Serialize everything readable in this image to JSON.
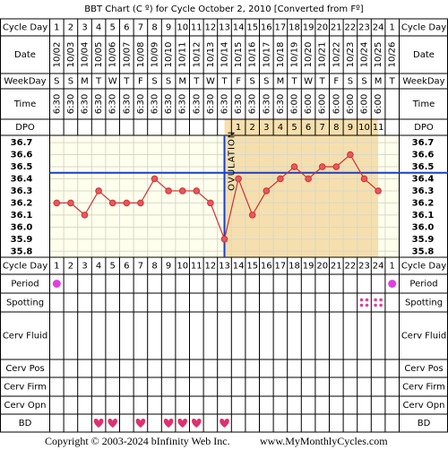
{
  "title": "BBT Chart (C º) for Cycle October 2, 2010  [Converted from Fº]",
  "labels": {
    "cycle_day": "Cycle Day",
    "date": "Date",
    "weekday": "WeekDay",
    "time": "Time",
    "dpo": "DPO",
    "period": "Period",
    "spotting": "Spotting",
    "cerv_fluid": "Cerv Fluid",
    "cerv_pos": "Cerv Pos",
    "cerv_firm": "Cerv Firm",
    "cerv_opn": "Cerv Opn",
    "bd": "BD"
  },
  "columns": {
    "cycle_day": [
      1,
      2,
      3,
      4,
      5,
      6,
      7,
      8,
      9,
      10,
      11,
      12,
      13,
      14,
      15,
      16,
      17,
      18,
      19,
      20,
      21,
      22,
      23,
      24,
      1
    ],
    "date": [
      "10/02",
      "10/03",
      "10/04",
      "10/05",
      "10/06",
      "10/07",
      "10/08",
      "10/09",
      "10/10",
      "10/11",
      "10/12",
      "10/13",
      "10/14",
      "10/15",
      "10/16",
      "10/17",
      "10/18",
      "10/19",
      "10/20",
      "10/21",
      "10/22",
      "10/23",
      "10/24",
      "10/25",
      "10/26"
    ],
    "weekday": [
      "S",
      "S",
      "M",
      "T",
      "W",
      "T",
      "F",
      "S",
      "S",
      "M",
      "T",
      "W",
      "T",
      "F",
      "S",
      "S",
      "M",
      "T",
      "W",
      "T",
      "F",
      "S",
      "S",
      "M",
      "T"
    ],
    "time": [
      "6:30",
      "6:30",
      "6:30",
      "6:30",
      "6:30",
      "6:30",
      "6:30",
      "6:30",
      "6:30",
      "6:30",
      "6:30",
      "6:30",
      "6:30",
      "6:30",
      "6:30",
      "6:30",
      "6:30",
      "6:00",
      "6:00",
      "6:00",
      "6:00",
      "6:00",
      "6:00",
      "6:00",
      null
    ],
    "dpo": [
      null,
      null,
      null,
      null,
      null,
      null,
      null,
      null,
      null,
      null,
      null,
      null,
      null,
      1,
      2,
      3,
      4,
      5,
      6,
      7,
      8,
      9,
      10,
      11,
      null
    ]
  },
  "chart_data": {
    "type": "line",
    "annotation": "OVULATION",
    "ovulation_column": 13,
    "coverline": 36.45,
    "color": "#cc3333",
    "coverline_color": "#1a3fc4",
    "values": [
      36.2,
      36.2,
      36.1,
      36.3,
      36.2,
      36.2,
      36.2,
      36.4,
      36.3,
      36.3,
      36.3,
      36.2,
      35.9,
      36.4,
      36.1,
      36.3,
      36.4,
      36.5,
      36.4,
      36.5,
      36.5,
      36.6,
      36.4,
      36.3,
      null
    ],
    "ylim": [
      35.75,
      36.76
    ],
    "yticks": [
      36.7,
      36.6,
      36.5,
      36.4,
      36.3,
      36.2,
      36.1,
      {
        "value": 36.0,
        "label": "36.0"
      },
      35.9,
      35.8
    ]
  },
  "period_columns": [
    1,
    25
  ],
  "spotting_columns": [
    23,
    24
  ],
  "bd_columns": [
    4,
    5,
    7,
    9,
    10,
    11,
    13
  ],
  "footer": {
    "copyright": "Copyright © 2003-2024 bInfinity Web Inc.",
    "site": "www.MyMonthlyCycles.com"
  }
}
